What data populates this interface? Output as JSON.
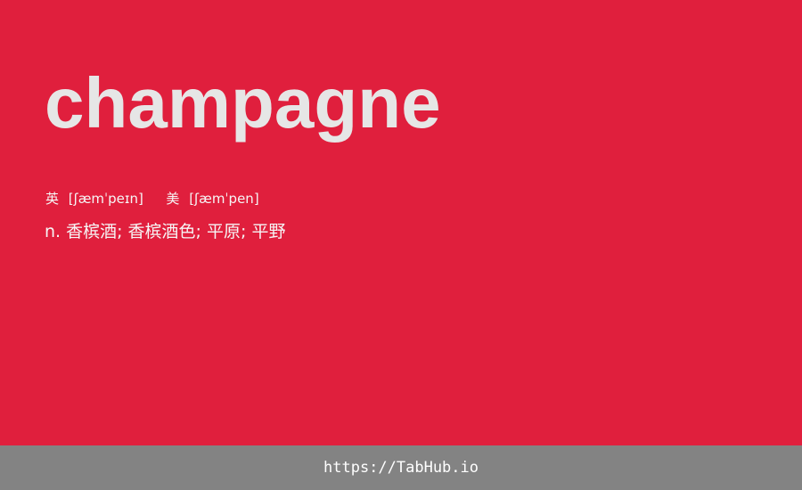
{
  "card": {
    "word": "champagne",
    "phonetic_uk_label": "英",
    "phonetic_uk": "[ʃæmˈpeɪn]",
    "phonetic_us_label": "美",
    "phonetic_us": "[ʃæmˈpen]",
    "definition": "n. 香槟酒; 香槟酒色; 平原; 平野"
  },
  "footer": {
    "url": "https://TabHub.io"
  },
  "colors": {
    "background": "#e01f3d",
    "footer": "#838383",
    "word": "#e6e6e6"
  }
}
